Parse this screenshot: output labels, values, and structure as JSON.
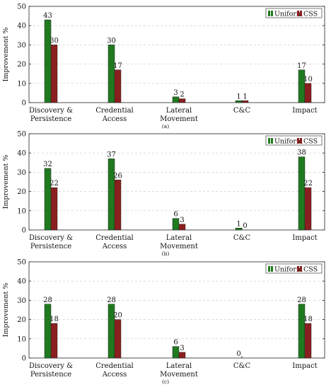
{
  "colors": {
    "uniform": "#1f7a1f",
    "css": "#8b1f1f"
  },
  "chart_data": [
    {
      "type": "bar",
      "ylabel": "Improvement %",
      "ylim": [
        0,
        50
      ],
      "yticks": [
        0,
        10,
        20,
        30,
        40,
        50
      ],
      "grid": true,
      "legend_position": "top-right",
      "categories": [
        [
          "Discovery &",
          "Persistence"
        ],
        [
          "Credential",
          "Access"
        ],
        [
          "Lateral",
          "Movement"
        ],
        [
          "C&C"
        ],
        [
          "Impact"
        ]
      ],
      "series": [
        {
          "name": "Uniform",
          "values": [
            43,
            30,
            3,
            1,
            17
          ]
        },
        {
          "name": "CSS",
          "values": [
            30,
            17,
            2,
            1,
            10
          ]
        }
      ],
      "caption": "(a)"
    },
    {
      "type": "bar",
      "ylabel": "Improvement %",
      "ylim": [
        0,
        50
      ],
      "yticks": [
        0,
        10,
        20,
        30,
        40,
        50
      ],
      "grid": true,
      "legend_position": "top-right",
      "categories": [
        [
          "Discovery &",
          "Persistence"
        ],
        [
          "Credential",
          "Access"
        ],
        [
          "Lateral",
          "Movement"
        ],
        [
          "C&C"
        ],
        [
          "Impact"
        ]
      ],
      "series": [
        {
          "name": "Uniform",
          "values": [
            32,
            37,
            6,
            1,
            38
          ]
        },
        {
          "name": "CSS",
          "values": [
            22,
            26,
            3,
            0,
            22
          ]
        }
      ],
      "caption": "(b)"
    },
    {
      "type": "bar",
      "ylabel": "Improvement %",
      "ylim": [
        0,
        50
      ],
      "yticks": [
        0,
        10,
        20,
        30,
        40,
        50
      ],
      "grid": true,
      "legend_position": "top-right",
      "categories": [
        [
          "Discovery &",
          "Persistence"
        ],
        [
          "Credential",
          "Access"
        ],
        [
          "Lateral",
          "Movement"
        ],
        [
          "C&C"
        ],
        [
          "Impact"
        ]
      ],
      "series": [
        {
          "name": "Uniform",
          "values": [
            28,
            28,
            6,
            0,
            28
          ]
        },
        {
          "name": "CSS",
          "values": [
            18,
            20,
            3,
            null,
            18
          ]
        }
      ],
      "caption": "(c)"
    }
  ]
}
